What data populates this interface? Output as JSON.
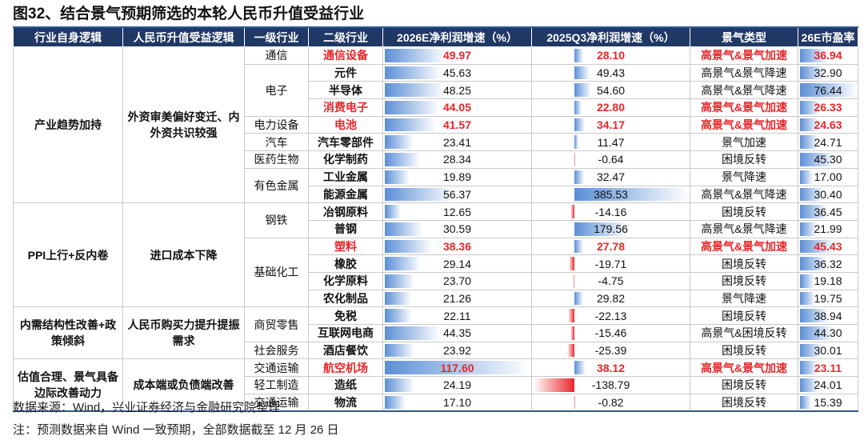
{
  "title": "图32、结合景气预期筛选的本轮人民币升值受益行业",
  "table": {
    "header": [
      "行业自身逻辑",
      "人民币升值受益逻辑",
      "一级行业",
      "二级行业",
      "2026E净利润增速（%）",
      "2025Q3净利润增速（%）",
      "景气类型",
      "26E市盈率"
    ],
    "highlight_color": "#e8262a",
    "bar_color": "#5b8fd6",
    "negative_bar_color": "#e8262a",
    "groups": [
      {
        "logic": "产业趋势加持",
        "benefit": "外资审美偏好变迁、内外资共识较强",
        "industries": [
          {
            "name": "通信",
            "rows": [
              {
                "sub": "通信设备",
                "np2026": "49.97",
                "np2025q3": "28.10",
                "type": "高景气&景气加速",
                "pe": "36.94",
                "highlight": true
              }
            ]
          },
          {
            "name": "电子",
            "rows": [
              {
                "sub": "元件",
                "np2026": "45.63",
                "np2025q3": "49.43",
                "type": "高景气&景气降速",
                "pe": "32.90"
              },
              {
                "sub": "半导体",
                "np2026": "48.25",
                "np2025q3": "54.60",
                "type": "高景气&景气降速",
                "pe": "76.44"
              },
              {
                "sub": "消费电子",
                "np2026": "44.05",
                "np2025q3": "22.80",
                "type": "高景气&景气加速",
                "pe": "26.33",
                "highlight": true
              }
            ]
          },
          {
            "name": "电力设备",
            "rows": [
              {
                "sub": "电池",
                "np2026": "41.57",
                "np2025q3": "34.17",
                "type": "高景气&景气加速",
                "pe": "24.63",
                "highlight": true
              }
            ]
          },
          {
            "name": "汽车",
            "rows": [
              {
                "sub": "汽车零部件",
                "np2026": "23.41",
                "np2025q3": "11.47",
                "type": "景气加速",
                "pe": "24.71"
              }
            ]
          },
          {
            "name": "医药生物",
            "rows": [
              {
                "sub": "化学制药",
                "np2026": "28.34",
                "np2025q3": "-0.64",
                "type": "困境反转",
                "pe": "45.30"
              }
            ]
          },
          {
            "name": "有色金属",
            "rows": [
              {
                "sub": "工业金属",
                "np2026": "19.89",
                "np2025q3": "32.47",
                "type": "景气降速",
                "pe": "17.00"
              },
              {
                "sub": "能源金属",
                "np2026": "56.37",
                "np2025q3": "385.53",
                "type": "高景气&景气降速",
                "pe": "30.40"
              }
            ]
          }
        ]
      },
      {
        "logic": "PPI上行+反内卷",
        "benefit": "进口成本下降",
        "industries": [
          {
            "name": "钢铁",
            "rows": [
              {
                "sub": "冶钢原料",
                "np2026": "12.65",
                "np2025q3": "-14.16",
                "type": "困境反转",
                "pe": "36.45"
              },
              {
                "sub": "普钢",
                "np2026": "30.59",
                "np2025q3": "179.56",
                "type": "高景气&景气降速",
                "pe": "21.99"
              }
            ]
          },
          {
            "name": "基础化工",
            "rows": [
              {
                "sub": "塑料",
                "np2026": "38.36",
                "np2025q3": "27.78",
                "type": "高景气&景气加速",
                "pe": "45.43",
                "highlight": true
              },
              {
                "sub": "橡胶",
                "np2026": "29.14",
                "np2025q3": "-19.71",
                "type": "困境反转",
                "pe": "36.32"
              },
              {
                "sub": "化学原料",
                "np2026": "23.70",
                "np2025q3": "-4.75",
                "type": "困境反转",
                "pe": "19.18"
              },
              {
                "sub": "农化制品",
                "np2026": "21.26",
                "np2025q3": "29.82",
                "type": "景气降速",
                "pe": "19.75"
              }
            ]
          }
        ]
      },
      {
        "logic": "内需结构性改善+政策倾斜",
        "benefit": "人民币购买力提升提振需求",
        "industries": [
          {
            "name": "商贸零售",
            "rows": [
              {
                "sub": "免税",
                "np2026": "22.11",
                "np2025q3": "-22.13",
                "type": "困境反转",
                "pe": "38.94"
              },
              {
                "sub": "互联网电商",
                "np2026": "44.35",
                "np2025q3": "-15.46",
                "type": "高景气&困境反转",
                "pe": "44.30"
              }
            ]
          },
          {
            "name": "社会服务",
            "rows": [
              {
                "sub": "酒店餐饮",
                "np2026": "23.92",
                "np2025q3": "-25.39",
                "type": "困境反转",
                "pe": "30.01"
              }
            ]
          }
        ]
      },
      {
        "logic": "估值合理、景气具备边际改善动力",
        "benefit": "成本端或负债端改善",
        "industries": [
          {
            "name": "交通运输",
            "rows": [
              {
                "sub": "航空机场",
                "np2026": "117.60",
                "np2025q3": "38.12",
                "type": "高景气&景气加速",
                "pe": "23.11",
                "highlight": true
              }
            ]
          },
          {
            "name": "轻工制造",
            "rows": [
              {
                "sub": "造纸",
                "np2026": "24.19",
                "np2025q3": "-138.79",
                "type": "困境反转",
                "pe": "24.01"
              }
            ]
          },
          {
            "name": "交通运输",
            "rows": [
              {
                "sub": "物流",
                "np2026": "17.10",
                "np2025q3": "-0.82",
                "type": "困境反转",
                "pe": "15.39"
              }
            ]
          }
        ]
      }
    ]
  },
  "notes": [
    "数据来源：Wind，兴业证券经济与金融研究院整理",
    "注：预测数据来自 Wind 一致预期，全部数据截至 12 月 26 日"
  ]
}
